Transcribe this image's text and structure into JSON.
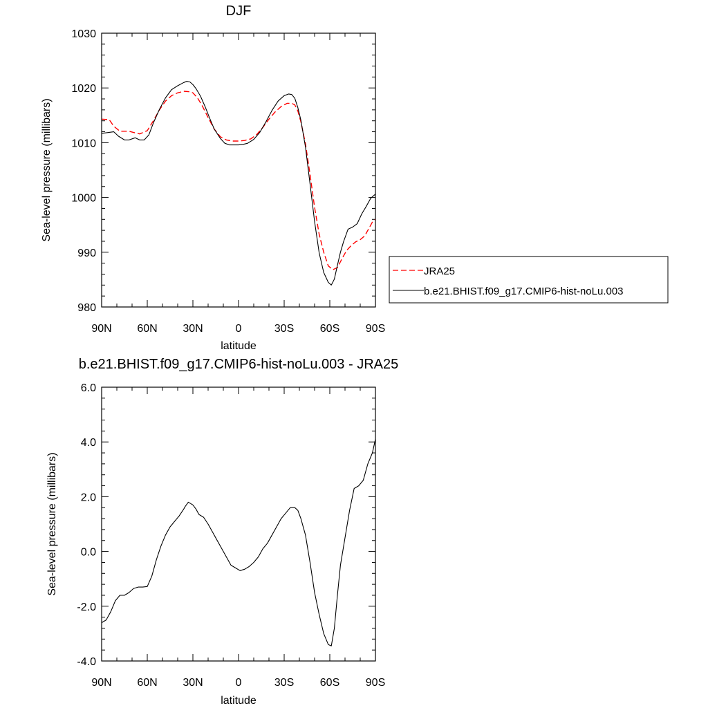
{
  "chart_data": [
    {
      "type": "line",
      "title": "DJF",
      "xlabel": "latitude",
      "ylabel": "Sea-level pressure (millibars)",
      "xlim": [
        90,
        -90
      ],
      "ylim": [
        980,
        1030
      ],
      "x_ticks": [
        90,
        60,
        30,
        0,
        -30,
        -60,
        -90
      ],
      "x_tick_labels": [
        "90N",
        "60N",
        "30N",
        "0",
        "30S",
        "60S",
        "90S"
      ],
      "y_ticks": [
        980,
        990,
        1000,
        1010,
        1020,
        1030
      ],
      "y_tick_labels": [
        "980",
        "990",
        "1000",
        "1010",
        "1020",
        "1030"
      ],
      "legend_position": "right",
      "series": [
        {
          "name": "JRA25",
          "color": "#ff0000",
          "dash": "dashed",
          "x": [
            90,
            85,
            82,
            78,
            72,
            68,
            65,
            60,
            56,
            52,
            48,
            44,
            40,
            36,
            32,
            30,
            27,
            24,
            20,
            16,
            12,
            8,
            4,
            0,
            -4,
            -8,
            -12,
            -16,
            -20,
            -24,
            -28,
            -32,
            -35,
            -37,
            -39,
            -41,
            -44,
            -47,
            -50,
            -53,
            -56,
            -59,
            -62,
            -65,
            -68,
            -71,
            -74,
            -77,
            -80,
            -83,
            -86,
            -88,
            -90
          ],
          "y": [
            1014.3,
            1014.2,
            1013,
            1012.1,
            1012.1,
            1011.8,
            1011.6,
            1012.2,
            1014.0,
            1016.0,
            1017.6,
            1018.6,
            1019.1,
            1019.4,
            1019.3,
            1019.1,
            1018.2,
            1016.8,
            1014.6,
            1012.5,
            1011.1,
            1010.5,
            1010.3,
            1010.3,
            1010.4,
            1010.7,
            1011.5,
            1012.8,
            1014.3,
            1015.6,
            1016.6,
            1017.2,
            1017.2,
            1016.9,
            1015.8,
            1013.8,
            1009.8,
            1004.2,
            998.2,
            993.3,
            990.0,
            987.5,
            986.8,
            987.2,
            988.8,
            990.3,
            991.2,
            991.9,
            992.3,
            993.0,
            994.5,
            995.5,
            996.0
          ]
        },
        {
          "name": "b.e21.BHIST.f09_g17.CMIP6-hist-noLu.003",
          "color": "#000000",
          "dash": "solid",
          "x": [
            90,
            85,
            82,
            79,
            75,
            72,
            68,
            65,
            62,
            59,
            56,
            52,
            48,
            44,
            40,
            36,
            34,
            32,
            30,
            28,
            25,
            22,
            19,
            16,
            12,
            9,
            6,
            3,
            0,
            -3,
            -6,
            -10,
            -14,
            -18,
            -22,
            -26,
            -30,
            -33,
            -35,
            -37,
            -39,
            -41,
            -44,
            -47,
            -50,
            -53,
            -56,
            -59,
            -61,
            -63,
            -65,
            -67,
            -69,
            -72,
            -75,
            -78,
            -81,
            -84,
            -87,
            -90
          ],
          "y": [
            1011.7,
            1011.9,
            1012.0,
            1011.2,
            1010.5,
            1010.5,
            1010.9,
            1010.5,
            1010.5,
            1011.4,
            1013.6,
            1016.1,
            1018.2,
            1019.7,
            1020.4,
            1021.0,
            1021.2,
            1021.1,
            1020.6,
            1019.9,
            1018.5,
            1016.6,
            1014.5,
            1012.5,
            1010.8,
            1009.9,
            1009.6,
            1009.6,
            1009.6,
            1009.7,
            1009.9,
            1010.6,
            1011.9,
            1013.8,
            1015.9,
            1017.6,
            1018.6,
            1018.9,
            1018.8,
            1018.1,
            1016.4,
            1014.1,
            1009.2,
            1002.5,
            995.6,
            989.9,
            986.3,
            984.5,
            984.0,
            985.1,
            987.6,
            990.0,
            991.9,
            994.2,
            994.6,
            995.2,
            997.0,
            998.4,
            999.9,
            1000.6
          ]
        }
      ]
    },
    {
      "type": "line",
      "title": "b.e21.BHIST.f09_g17.CMIP6-hist-noLu.003 - JRA25",
      "xlabel": "latitude",
      "ylabel": "Sea-level pressure (millibars)",
      "xlim": [
        90,
        -90
      ],
      "ylim": [
        -4.0,
        6.0
      ],
      "x_ticks": [
        90,
        60,
        30,
        0,
        -30,
        -60,
        -90
      ],
      "x_tick_labels": [
        "90N",
        "60N",
        "30N",
        "0",
        "30S",
        "60S",
        "90S"
      ],
      "y_ticks": [
        -4,
        -2,
        0,
        2,
        4,
        6
      ],
      "y_tick_labels": [
        "-4.0",
        "-2.0",
        "0.0",
        "2.0",
        "4.0",
        "6.0"
      ],
      "series": [
        {
          "color": "#000000",
          "dash": "solid",
          "x": [
            90,
            87,
            84,
            81,
            78,
            75,
            72,
            69,
            66,
            63,
            60,
            57,
            54,
            51,
            48,
            45,
            42,
            39,
            36,
            35,
            33,
            30,
            28,
            26,
            23,
            20,
            17,
            14,
            11,
            8,
            5,
            2,
            -1,
            -4,
            -7,
            -10,
            -13,
            -16,
            -19,
            -22,
            -25,
            -28,
            -31,
            -34,
            -37,
            -39,
            -41,
            -44,
            -47,
            -50,
            -53,
            -56,
            -59,
            -61,
            -63,
            -65,
            -67,
            -70,
            -73,
            -76,
            -79,
            -82,
            -85,
            -88,
            -90
          ],
          "y": [
            -2.6,
            -2.5,
            -2.2,
            -1.8,
            -1.6,
            -1.6,
            -1.5,
            -1.35,
            -1.3,
            -1.3,
            -1.28,
            -0.9,
            -0.3,
            0.2,
            0.6,
            0.9,
            1.1,
            1.3,
            1.55,
            1.65,
            1.8,
            1.7,
            1.55,
            1.35,
            1.25,
            1.0,
            0.7,
            0.4,
            0.1,
            -0.2,
            -0.5,
            -0.6,
            -0.7,
            -0.65,
            -0.55,
            -0.4,
            -0.2,
            0.1,
            0.3,
            0.6,
            0.9,
            1.2,
            1.4,
            1.6,
            1.6,
            1.5,
            1.2,
            0.6,
            -0.4,
            -1.5,
            -2.3,
            -3.0,
            -3.4,
            -3.45,
            -2.8,
            -1.6,
            -0.5,
            0.5,
            1.5,
            2.3,
            2.4,
            2.6,
            3.2,
            3.6,
            4.1
          ]
        }
      ]
    }
  ]
}
